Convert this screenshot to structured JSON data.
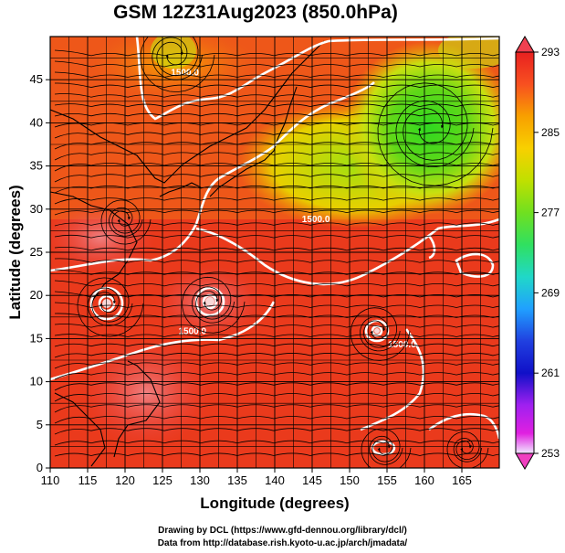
{
  "title": "GSM 12Z31Aug2023 (850.0hPa)",
  "map": {
    "x_axis": {
      "label": "Longitude (degrees)",
      "range": [
        110,
        170
      ],
      "ticks": [
        110,
        115,
        120,
        125,
        130,
        135,
        140,
        145,
        150,
        155,
        160,
        165
      ]
    },
    "y_axis": {
      "label": "Latitude  (degrees)",
      "range": [
        0,
        50
      ],
      "ticks": [
        0,
        5,
        10,
        15,
        20,
        25,
        30,
        35,
        40,
        45
      ]
    },
    "grid": true,
    "contours": {
      "label_text": "1500.0",
      "labels": [
        {
          "text": "1500.0",
          "lon": 128,
          "lat": 45.5
        },
        {
          "text": "1500.0",
          "lon": 145.5,
          "lat": 28.5
        },
        {
          "text": "1500.0",
          "lon": 129,
          "lat": 15.5
        },
        {
          "text": "1500.0",
          "lon": 157,
          "lat": 14
        }
      ]
    },
    "features": [
      {
        "name": "low-center-west",
        "lon": 117,
        "lat": 19.5
      },
      {
        "name": "low-center-central",
        "lon": 131,
        "lat": 21
      },
      {
        "name": "low-center-east",
        "lon": 154,
        "lat": 16
      }
    ]
  },
  "colorbar": {
    "min": 253,
    "max": 293,
    "tick_labels": [
      "293",
      "285",
      "277",
      "269",
      "261",
      "253"
    ],
    "tick_values": [
      293,
      285,
      277,
      269,
      261,
      253
    ],
    "colors": [
      "#f0e8ff",
      "#e020e0",
      "#a020f0",
      "#1010c8",
      "#2040e0",
      "#20a0ff",
      "#20d8c8",
      "#30e060",
      "#70e020",
      "#c0e000",
      "#f8d000",
      "#f8a000",
      "#f85020",
      "#e82020"
    ]
  },
  "credits": {
    "line1": "Drawing by DCL (https://www.gfd-dennou.org/library/dcl/)",
    "line2": "Data from http://database.rish.kyoto-u.ac.jp/arch/jmadata/"
  }
}
